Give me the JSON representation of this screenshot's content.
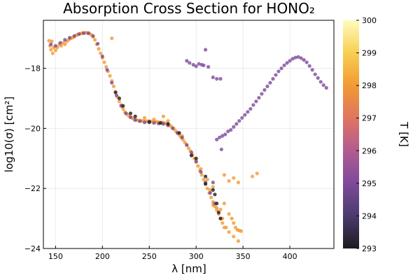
{
  "chart_data": {
    "type": "scatter",
    "title": "Absorption Cross Section for HONO₂",
    "xlabel": "λ [nm]",
    "ylabel": "log10(σ) [cm²]",
    "xlim": [
      137,
      447
    ],
    "ylim": [
      -24,
      -16.4
    ],
    "xticks": [
      150,
      200,
      250,
      300,
      350,
      400
    ],
    "yticks": [
      -24,
      -22,
      -20,
      -18
    ],
    "grid": true,
    "colorbar": {
      "label": "T [K]",
      "range": [
        293,
        300
      ],
      "ticks": [
        293,
        294,
        295,
        296,
        297,
        298,
        299,
        300
      ],
      "colormap": [
        "#1c1c1c",
        "#4a3b6e",
        "#7e4a9a",
        "#b15c90",
        "#df7560",
        "#f29a33",
        "#f7cf52",
        "#fffbbd"
      ]
    },
    "series": [
      {
        "temperature": 298,
        "points": [
          [
            143,
            -17.08
          ],
          [
            144,
            -17.25
          ],
          [
            145,
            -17.38
          ],
          [
            146,
            -17.1
          ],
          [
            147,
            -17.5
          ],
          [
            148,
            -17.3
          ],
          [
            150,
            -17.4
          ],
          [
            152,
            -17.3
          ],
          [
            154,
            -17.2
          ],
          [
            156,
            -17.25
          ],
          [
            158,
            -17.15
          ],
          [
            160,
            -17.2
          ],
          [
            162,
            -17.1
          ],
          [
            164,
            -17.05
          ],
          [
            166,
            -17.0
          ],
          [
            168,
            -16.98
          ],
          [
            170,
            -16.95
          ],
          [
            172,
            -16.9
          ],
          [
            174,
            -16.87
          ],
          [
            176,
            -16.85
          ],
          [
            178,
            -16.83
          ],
          [
            180,
            -16.82
          ],
          [
            182,
            -16.81
          ],
          [
            184,
            -16.82
          ],
          [
            186,
            -16.84
          ],
          [
            188,
            -16.88
          ],
          [
            190,
            -16.95
          ],
          [
            192,
            -17.05
          ],
          [
            194,
            -17.2
          ],
          [
            196,
            -17.35
          ],
          [
            198,
            -17.5
          ],
          [
            200,
            -17.65
          ],
          [
            202,
            -17.8
          ],
          [
            204,
            -17.95
          ],
          [
            206,
            -18.1
          ],
          [
            208,
            -18.25
          ],
          [
            210,
            -18.42
          ],
          [
            212,
            -18.6
          ],
          [
            214,
            -18.78
          ],
          [
            216,
            -18.95
          ],
          [
            218,
            -19.1
          ],
          [
            220,
            -19.22
          ],
          [
            222,
            -19.35
          ],
          [
            224,
            -19.45
          ],
          [
            226,
            -19.52
          ],
          [
            228,
            -19.58
          ],
          [
            230,
            -19.62
          ],
          [
            232,
            -19.66
          ],
          [
            234,
            -19.7
          ],
          [
            236,
            -19.72
          ],
          [
            238,
            -19.73
          ],
          [
            240,
            -19.74
          ],
          [
            242,
            -19.75
          ],
          [
            244,
            -19.75
          ],
          [
            246,
            -19.76
          ],
          [
            248,
            -19.76
          ],
          [
            250,
            -19.76
          ],
          [
            252,
            -19.77
          ],
          [
            254,
            -19.77
          ],
          [
            256,
            -19.78
          ],
          [
            258,
            -19.78
          ],
          [
            260,
            -19.79
          ],
          [
            262,
            -19.8
          ],
          [
            264,
            -19.8
          ],
          [
            266,
            -19.82
          ],
          [
            268,
            -19.84
          ],
          [
            270,
            -19.86
          ],
          [
            272,
            -19.9
          ],
          [
            274,
            -19.95
          ],
          [
            276,
            -20.0
          ],
          [
            278,
            -20.08
          ],
          [
            280,
            -20.15
          ],
          [
            282,
            -20.22
          ],
          [
            284,
            -20.3
          ],
          [
            286,
            -20.38
          ],
          [
            288,
            -20.47
          ],
          [
            290,
            -20.56
          ],
          [
            292,
            -20.66
          ],
          [
            294,
            -20.76
          ],
          [
            296,
            -20.88
          ],
          [
            298,
            -21.0
          ],
          [
            300,
            -21.12
          ],
          [
            302,
            -21.25
          ],
          [
            304,
            -21.4
          ],
          [
            306,
            -21.55
          ],
          [
            308,
            -21.7
          ],
          [
            310,
            -21.85
          ],
          [
            312,
            -22.0
          ],
          [
            314,
            -22.15
          ],
          [
            316,
            -22.3
          ],
          [
            318,
            -22.45
          ],
          [
            320,
            -22.6
          ],
          [
            322,
            -22.72
          ],
          [
            324,
            -22.85
          ],
          [
            326,
            -23.0
          ],
          [
            328,
            -23.15
          ],
          [
            330,
            -23.3
          ],
          [
            335,
            -22.85
          ],
          [
            338,
            -23.0
          ],
          [
            340,
            -23.15
          ],
          [
            342,
            -23.3
          ],
          [
            344,
            -23.38
          ],
          [
            346,
            -23.4
          ],
          [
            348,
            -23.42
          ],
          [
            210,
            -17.0
          ],
          [
            245,
            -19.65
          ],
          [
            255,
            -19.7
          ],
          [
            265,
            -19.6
          ],
          [
            270,
            -19.75
          ],
          [
            285,
            -20.25
          ],
          [
            295,
            -20.9
          ],
          [
            305,
            -21.35
          ],
          [
            315,
            -22.05
          ],
          [
            330,
            -21.55
          ],
          [
            335,
            -21.75
          ],
          [
            340,
            -21.65
          ],
          [
            345,
            -21.8
          ],
          [
            360,
            -21.6
          ],
          [
            365,
            -21.5
          ],
          [
            318,
            -22.55
          ],
          [
            322,
            -22.65
          ],
          [
            328,
            -23.0
          ],
          [
            332,
            -23.3
          ],
          [
            335,
            -23.45
          ],
          [
            340,
            -23.6
          ],
          [
            345,
            -23.75
          ],
          [
            330,
            -22.5
          ],
          [
            326,
            -22.7
          ],
          [
            318,
            -21.95
          ],
          [
            312,
            -21.7
          ]
        ]
      },
      {
        "temperature": 295,
        "points": [
          [
            145,
            -17.2
          ],
          [
            150,
            -17.25
          ],
          [
            155,
            -17.15
          ],
          [
            160,
            -17.05
          ],
          [
            165,
            -16.98
          ],
          [
            170,
            -16.92
          ],
          [
            175,
            -16.86
          ],
          [
            180,
            -16.83
          ],
          [
            185,
            -16.83
          ],
          [
            190,
            -16.92
          ],
          [
            195,
            -17.18
          ],
          [
            200,
            -17.6
          ],
          [
            205,
            -18.05
          ],
          [
            210,
            -18.48
          ],
          [
            215,
            -18.9
          ],
          [
            220,
            -19.25
          ],
          [
            225,
            -19.5
          ],
          [
            230,
            -19.63
          ],
          [
            235,
            -19.72
          ],
          [
            240,
            -19.76
          ],
          [
            245,
            -19.8
          ],
          [
            250,
            -19.8
          ],
          [
            255,
            -19.82
          ],
          [
            260,
            -19.84
          ],
          [
            265,
            -19.85
          ],
          [
            270,
            -19.9
          ],
          [
            275,
            -20.0
          ],
          [
            280,
            -20.15
          ],
          [
            285,
            -20.3
          ],
          [
            290,
            -20.55
          ],
          [
            295,
            -20.8
          ],
          [
            300,
            -21.1
          ],
          [
            305,
            -21.45
          ],
          [
            310,
            -21.8
          ],
          [
            315,
            -22.15
          ],
          [
            320,
            -22.5
          ],
          [
            290,
            -17.75
          ],
          [
            293,
            -17.82
          ],
          [
            297,
            -17.88
          ],
          [
            300,
            -17.93
          ],
          [
            303,
            -17.85
          ],
          [
            306,
            -17.88
          ],
          [
            308,
            -17.9
          ],
          [
            313,
            -17.95
          ],
          [
            310,
            -17.38
          ],
          [
            318,
            -18.3
          ],
          [
            322,
            -18.35
          ],
          [
            326,
            -18.35
          ],
          [
            327,
            -20.7
          ],
          [
            318,
            -21.8
          ],
          [
            322,
            -20.37
          ],
          [
            325,
            -20.3
          ],
          [
            328,
            -20.25
          ],
          [
            331,
            -20.2
          ],
          [
            334,
            -20.1
          ],
          [
            337,
            -20.05
          ],
          [
            340,
            -19.95
          ],
          [
            343,
            -19.85
          ],
          [
            346,
            -19.75
          ],
          [
            349,
            -19.65
          ],
          [
            352,
            -19.55
          ],
          [
            355,
            -19.45
          ],
          [
            358,
            -19.35
          ],
          [
            361,
            -19.22
          ],
          [
            364,
            -19.1
          ],
          [
            367,
            -18.98
          ],
          [
            370,
            -18.85
          ],
          [
            373,
            -18.72
          ],
          [
            376,
            -18.6
          ],
          [
            379,
            -18.48
          ],
          [
            382,
            -18.35
          ],
          [
            385,
            -18.22
          ],
          [
            388,
            -18.1
          ],
          [
            391,
            -18.0
          ],
          [
            394,
            -17.9
          ],
          [
            397,
            -17.82
          ],
          [
            400,
            -17.75
          ],
          [
            403,
            -17.68
          ],
          [
            406,
            -17.64
          ],
          [
            409,
            -17.62
          ],
          [
            412,
            -17.66
          ],
          [
            415,
            -17.72
          ],
          [
            418,
            -17.8
          ],
          [
            421,
            -17.92
          ],
          [
            424,
            -18.05
          ],
          [
            427,
            -18.2
          ],
          [
            430,
            -18.32
          ],
          [
            433,
            -18.45
          ],
          [
            436,
            -18.56
          ],
          [
            439,
            -18.65
          ]
        ]
      },
      {
        "temperature": 293,
        "points": [
          [
            214,
            -18.8
          ],
          [
            218,
            -19.0
          ],
          [
            222,
            -19.25
          ],
          [
            230,
            -19.5
          ],
          [
            235,
            -19.6
          ],
          [
            250,
            -19.78
          ],
          [
            262,
            -19.82
          ],
          [
            270,
            -19.85
          ],
          [
            282,
            -20.15
          ],
          [
            295,
            -20.9
          ],
          [
            300,
            -21.0
          ],
          [
            310,
            -21.6
          ],
          [
            320,
            -22.2
          ],
          [
            322,
            -22.5
          ],
          [
            324,
            -22.8
          ],
          [
            326,
            -23.0
          ],
          [
            310,
            -21.85
          ],
          [
            318,
            -22.05
          ]
        ]
      }
    ]
  }
}
